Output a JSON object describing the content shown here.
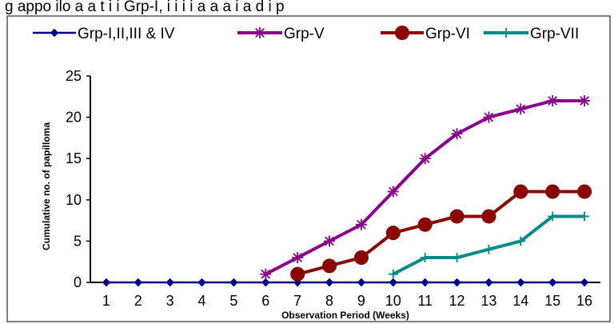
{
  "header": {
    "title_fragment": "g  appo ilo  a   a          t  i i  Grp-I, i  i  i  i  a  a    a  i  a  d i   p  "
  },
  "chart_data": {
    "type": "line",
    "xlabel": "Observation Period (Weeks)",
    "ylabel": "Cumulative no. of papilloma",
    "categories": [
      "1",
      "2",
      "3",
      "4",
      "5",
      "6",
      "7",
      "8",
      "9",
      "10",
      "11",
      "12",
      "13",
      "14",
      "15",
      "16"
    ],
    "yticks": [
      0,
      5,
      10,
      15,
      20,
      25
    ],
    "ylim": [
      0,
      25
    ],
    "grid": false,
    "legend_position": "top",
    "series": [
      {
        "name": "Grp-I,II,III & IV",
        "color": "#00008b",
        "marker": "diamond",
        "x": [
          1,
          2,
          3,
          4,
          5,
          6,
          7,
          8,
          9,
          10,
          11,
          12,
          13,
          14,
          15,
          16
        ],
        "values": [
          0,
          0,
          0,
          0,
          0,
          0,
          0,
          0,
          0,
          0,
          0,
          0,
          0,
          0,
          0,
          0
        ]
      },
      {
        "name": "Grp-V",
        "color": "#8b008b",
        "marker": "asterisk",
        "x": [
          6,
          7,
          8,
          9,
          10,
          11,
          12,
          13,
          14,
          15,
          16
        ],
        "values": [
          1,
          3,
          5,
          7,
          11,
          15,
          18,
          20,
          21,
          22,
          22
        ]
      },
      {
        "name": "Grp-VI",
        "color": "#8b0000",
        "marker": "circle",
        "x": [
          7,
          8,
          9,
          10,
          11,
          12,
          13,
          14,
          15,
          16
        ],
        "values": [
          1,
          2,
          3,
          6,
          7,
          8,
          8,
          11,
          11,
          11
        ]
      },
      {
        "name": "Grp-VII",
        "color": "#008b8b",
        "marker": "plus",
        "x": [
          10,
          11,
          12,
          13,
          14,
          15,
          16
        ],
        "values": [
          1,
          3,
          3,
          4,
          5,
          8,
          8
        ]
      }
    ]
  }
}
